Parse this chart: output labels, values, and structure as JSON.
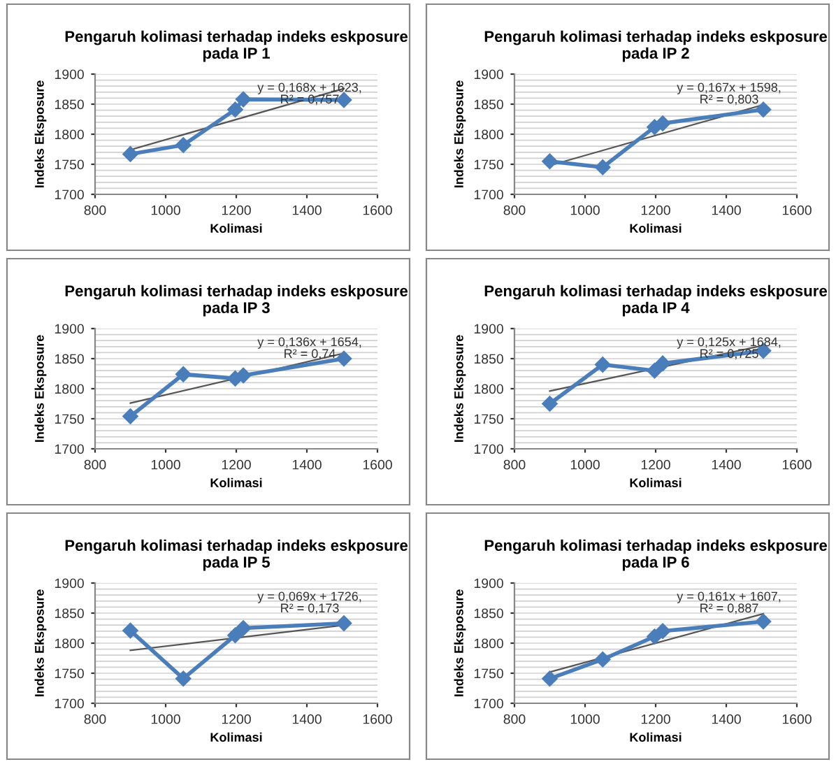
{
  "chart_data": [
    {
      "type": "line",
      "title": "Pengaruh kolimasi terhadap indeks eskposure\npada IP 1",
      "xlabel": "Kolimasi",
      "ylabel": "Indeks Eksposure",
      "xlim": [
        800,
        1600
      ],
      "xticks": [
        800,
        1000,
        1200,
        1400,
        1600
      ],
      "ylim": [
        1700,
        1900
      ],
      "yticks": [
        1700,
        1750,
        1800,
        1850,
        1900
      ],
      "grid": "y",
      "marker": "diamond",
      "annotations": [
        "y = 0,168x + 1623,\nR² = 0,757"
      ],
      "series": [
        {
          "color": "#4a7ebb",
          "x": [
            900,
            1050,
            1197,
            1220,
            1505
          ],
          "values": [
            1767,
            1782,
            1841,
            1858,
            1857
          ]
        },
        {
          "type": "line",
          "color": "#555555",
          "marker": "none",
          "x": [
            900,
            1505
          ],
          "values": [
            1774,
            1876
          ]
        }
      ]
    },
    {
      "type": "line",
      "title": "Pengaruh kolimasi terhadap indeks eskposure\npada IP 2",
      "xlabel": "Kolimasi",
      "ylabel": "Indeks Eksposure",
      "xlim": [
        800,
        1600
      ],
      "xticks": [
        800,
        1000,
        1200,
        1400,
        1600
      ],
      "ylim": [
        1700,
        1900
      ],
      "yticks": [
        1700,
        1750,
        1800,
        1850,
        1900
      ],
      "grid": "y",
      "marker": "diamond",
      "annotations": [
        "y = 0,167x + 1598,\nR² = 0,803"
      ],
      "series": [
        {
          "color": "#4a7ebb",
          "x": [
            900,
            1050,
            1197,
            1220,
            1505
          ],
          "values": [
            1755,
            1745,
            1812,
            1818,
            1841
          ]
        },
        {
          "type": "line",
          "color": "#555555",
          "marker": "none",
          "x": [
            900,
            1505
          ],
          "values": [
            1748,
            1849
          ]
        }
      ]
    },
    {
      "type": "line",
      "title": "Pengaruh kolimasi terhadap indeks eskposure\npada IP 3",
      "xlabel": "Kolimasi",
      "ylabel": "Indeks Eksposure",
      "xlim": [
        800,
        1600
      ],
      "xticks": [
        800,
        1000,
        1200,
        1400,
        1600
      ],
      "ylim": [
        1700,
        1900
      ],
      "yticks": [
        1700,
        1750,
        1800,
        1850,
        1900
      ],
      "grid": "y",
      "marker": "diamond",
      "annotations": [
        "y = 0,136x + 1654,\nR² = 0,74"
      ],
      "series": [
        {
          "color": "#4a7ebb",
          "x": [
            900,
            1050,
            1197,
            1220,
            1505
          ],
          "values": [
            1754,
            1824,
            1817,
            1822,
            1850
          ]
        },
        {
          "type": "line",
          "color": "#555555",
          "marker": "none",
          "x": [
            900,
            1505
          ],
          "values": [
            1776,
            1859
          ]
        }
      ]
    },
    {
      "type": "line",
      "title": "Pengaruh kolimasi terhadap indeks eskposure\npada IP 4",
      "xlabel": "Kolimasi",
      "ylabel": "Indeks Eksposure",
      "xlim": [
        800,
        1600
      ],
      "xticks": [
        800,
        1000,
        1200,
        1400,
        1600
      ],
      "ylim": [
        1700,
        1900
      ],
      "yticks": [
        1700,
        1750,
        1800,
        1850,
        1900
      ],
      "grid": "y",
      "marker": "diamond",
      "annotations": [
        "y = 0,125x + 1684,\nR² = 0,725"
      ],
      "series": [
        {
          "color": "#4a7ebb",
          "x": [
            900,
            1050,
            1197,
            1220,
            1505
          ],
          "values": [
            1775,
            1840,
            1830,
            1842,
            1863
          ]
        },
        {
          "type": "line",
          "color": "#555555",
          "marker": "none",
          "x": [
            900,
            1505
          ],
          "values": [
            1796,
            1872
          ]
        }
      ]
    },
    {
      "type": "line",
      "title": "Pengaruh kolimasi terhadap indeks eskposure\npada IP 5",
      "xlabel": "Kolimasi",
      "ylabel": "Indeks Eksposure",
      "xlim": [
        800,
        1600
      ],
      "xticks": [
        800,
        1000,
        1200,
        1400,
        1600
      ],
      "ylim": [
        1700,
        1900
      ],
      "yticks": [
        1700,
        1750,
        1800,
        1850,
        1900
      ],
      "grid": "y",
      "marker": "diamond",
      "annotations": [
        "y = 0,069x + 1726,\nR² = 0,173"
      ],
      "series": [
        {
          "color": "#4a7ebb",
          "x": [
            900,
            1050,
            1197,
            1220,
            1505
          ],
          "values": [
            1821,
            1741,
            1813,
            1825,
            1833
          ]
        },
        {
          "type": "line",
          "color": "#555555",
          "marker": "none",
          "x": [
            900,
            1505
          ],
          "values": [
            1788,
            1830
          ]
        }
      ]
    },
    {
      "type": "line",
      "title": "Pengaruh kolimasi terhadap indeks eskposure\npada IP 6",
      "xlabel": "Kolimasi",
      "ylabel": "Indeks Eksposure",
      "xlim": [
        800,
        1600
      ],
      "xticks": [
        800,
        1000,
        1200,
        1400,
        1600
      ],
      "ylim": [
        1700,
        1900
      ],
      "yticks": [
        1700,
        1750,
        1800,
        1850,
        1900
      ],
      "grid": "y",
      "marker": "diamond",
      "annotations": [
        "y = 0,161x + 1607,\nR² = 0,887"
      ],
      "series": [
        {
          "color": "#4a7ebb",
          "x": [
            900,
            1050,
            1197,
            1220,
            1505
          ],
          "values": [
            1741,
            1773,
            1811,
            1820,
            1836
          ]
        },
        {
          "type": "line",
          "color": "#555555",
          "marker": "none",
          "x": [
            900,
            1505
          ],
          "values": [
            1752,
            1849
          ]
        }
      ]
    }
  ]
}
